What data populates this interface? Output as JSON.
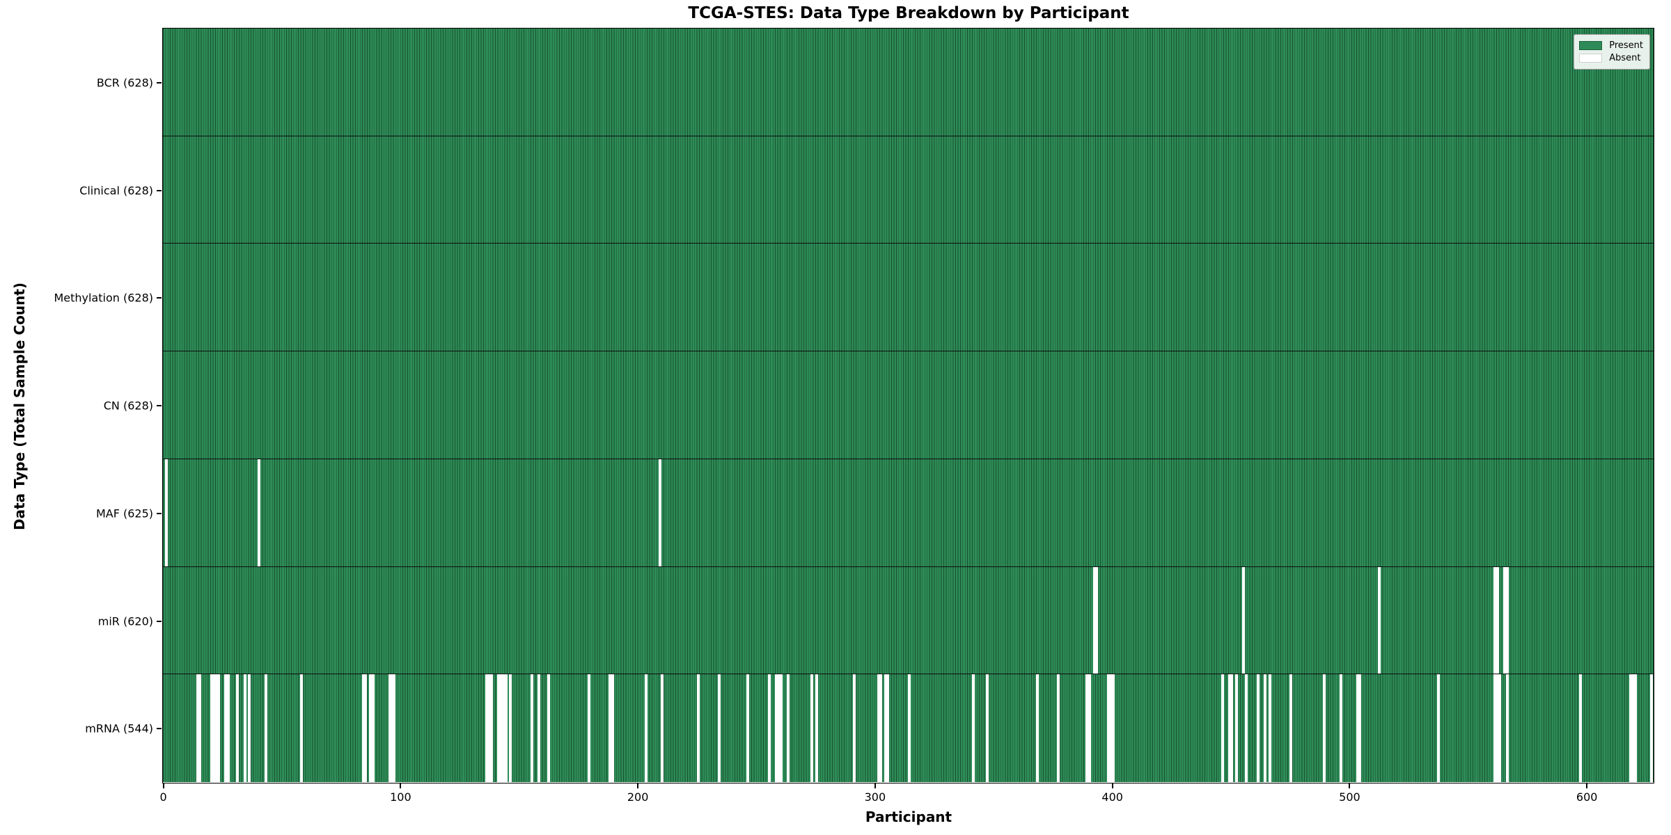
{
  "chart_data": {
    "type": "heatmap",
    "title": "TCGA-STES: Data Type Breakdown by Participant",
    "xlabel": "Participant",
    "ylabel": "Data Type (Total Sample Count)",
    "n_participants": 628,
    "x_ticks": [
      0,
      100,
      200,
      300,
      400,
      500,
      600
    ],
    "grid": false,
    "colors": {
      "present": "#2e8b57",
      "present_edge": "#16502e",
      "absent": "#ffffff",
      "row_divider": "#0d0d0d",
      "plot_border": "#000000"
    },
    "legend": {
      "position": "upper-right",
      "items": [
        {
          "label": "Present",
          "color": "#2e8b57"
        },
        {
          "label": "Absent",
          "color": "#ffffff"
        }
      ]
    },
    "rows": [
      {
        "label": "BCR (628)",
        "name": "BCR",
        "present_count": 628,
        "absent_participants": []
      },
      {
        "label": "Clinical (628)",
        "name": "Clinical",
        "present_count": 628,
        "absent_participants": []
      },
      {
        "label": "Methylation (628)",
        "name": "Methylation",
        "present_count": 628,
        "absent_participants": []
      },
      {
        "label": "CN (628)",
        "name": "CN",
        "present_count": 628,
        "absent_participants": []
      },
      {
        "label": "MAF (625)",
        "name": "MAF",
        "present_count": 625,
        "absent_participants": [
          1,
          40,
          209
        ]
      },
      {
        "label": "miR (620)",
        "name": "miR",
        "present_count": 620,
        "absent_participants": [
          392,
          393,
          455,
          512,
          561,
          562,
          565,
          566
        ]
      },
      {
        "label": "mRNA (544)",
        "name": "mRNA",
        "present_count": 544,
        "absent_participants": [
          14,
          15,
          20,
          21,
          22,
          23,
          26,
          27,
          31,
          34,
          36,
          43,
          58,
          84,
          85,
          87,
          88,
          95,
          96,
          97,
          136,
          137,
          138,
          141,
          142,
          143,
          144,
          146,
          155,
          158,
          162,
          179,
          188,
          189,
          203,
          210,
          225,
          234,
          246,
          255,
          258,
          259,
          260,
          263,
          273,
          275,
          291,
          301,
          302,
          304,
          305,
          314,
          341,
          347,
          368,
          377,
          389,
          390,
          398,
          399,
          400,
          446,
          449,
          450,
          452,
          456,
          461,
          464,
          466,
          475,
          489,
          496,
          503,
          504,
          537,
          561,
          562,
          563,
          566,
          597,
          618,
          619,
          620,
          627
        ]
      }
    ]
  }
}
